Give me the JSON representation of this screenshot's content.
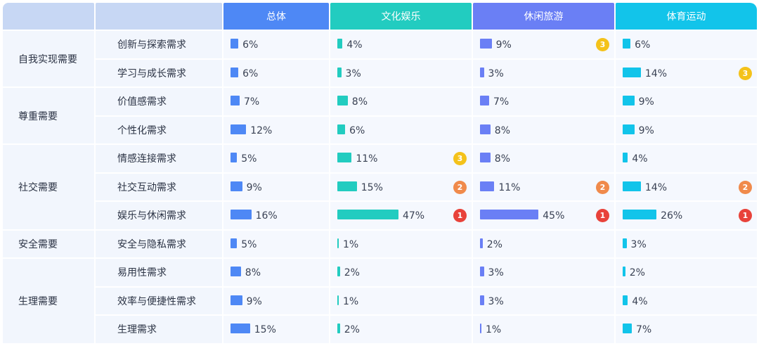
{
  "chart_data": {
    "type": "table",
    "columns": [
      "总体",
      "文化娱乐",
      "休闲旅游",
      "体育运动"
    ],
    "column_colors": [
      "#4e88f5",
      "#22ccc0",
      "#6a7ff5",
      "#12c4ea"
    ],
    "badge_colors": {
      "1": "#e8423a",
      "2": "#f08a4b",
      "3": "#f4c21a"
    },
    "groups": [
      {
        "name": "自我实现需要",
        "rows": [
          {
            "name": "创新与探索需求",
            "values": [
              6,
              4,
              9,
              6
            ],
            "ranks": [
              null,
              null,
              "3",
              null
            ]
          },
          {
            "name": "学习与成长需求",
            "values": [
              6,
              3,
              3,
              14
            ],
            "ranks": [
              null,
              null,
              null,
              "3"
            ]
          }
        ]
      },
      {
        "name": "尊重需要",
        "rows": [
          {
            "name": "价值感需求",
            "values": [
              7,
              8,
              7,
              9
            ],
            "ranks": [
              null,
              null,
              null,
              null
            ]
          },
          {
            "name": "个性化需求",
            "values": [
              12,
              6,
              8,
              9
            ],
            "ranks": [
              null,
              null,
              null,
              null
            ]
          }
        ]
      },
      {
        "name": "社交需要",
        "rows": [
          {
            "name": "情感连接需求",
            "values": [
              5,
              11,
              8,
              4
            ],
            "ranks": [
              null,
              "3",
              null,
              null
            ]
          },
          {
            "name": "社交互动需求",
            "values": [
              9,
              15,
              11,
              14
            ],
            "ranks": [
              null,
              "2",
              "2",
              "2"
            ]
          },
          {
            "name": "娱乐与休闲需求",
            "values": [
              16,
              47,
              45,
              26
            ],
            "ranks": [
              null,
              "1",
              "1",
              "1"
            ]
          }
        ]
      },
      {
        "name": "安全需要",
        "rows": [
          {
            "name": "安全与隐私需求",
            "values": [
              5,
              1,
              2,
              3
            ],
            "ranks": [
              null,
              null,
              null,
              null
            ]
          }
        ]
      },
      {
        "name": "生理需要",
        "rows": [
          {
            "name": "易用性需求",
            "values": [
              8,
              2,
              3,
              2
            ],
            "ranks": [
              null,
              null,
              null,
              null
            ]
          },
          {
            "name": "效率与便捷性需求",
            "values": [
              9,
              1,
              3,
              4
            ],
            "ranks": [
              null,
              null,
              null,
              null
            ]
          },
          {
            "name": "生理需求",
            "values": [
              15,
              2,
              1,
              7
            ],
            "ranks": [
              null,
              null,
              null,
              null
            ]
          }
        ]
      }
    ],
    "value_suffix": "%"
  }
}
